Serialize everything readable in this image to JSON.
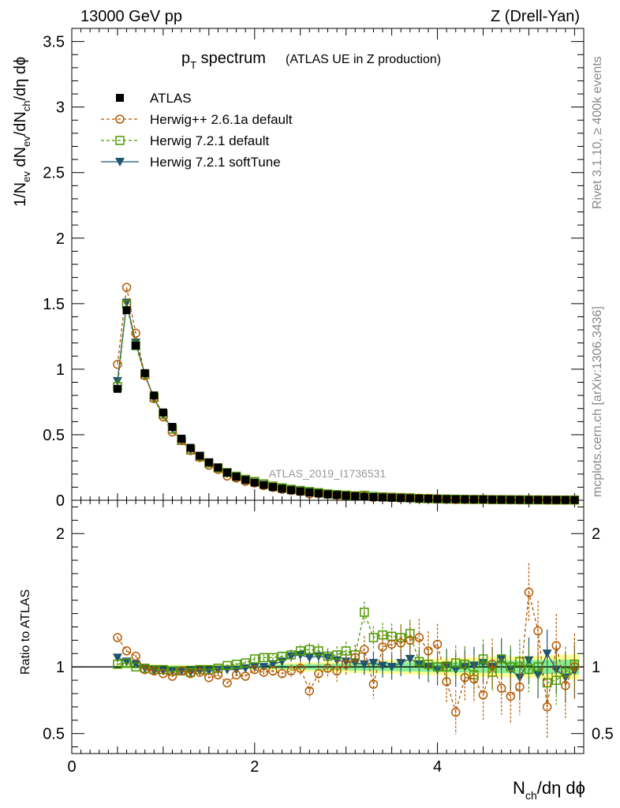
{
  "header": {
    "left": "13000 GeV pp",
    "right": "Z (Drell-Yan)"
  },
  "side_labels": {
    "rivet": "Rivet 3.1.10, ≥ 400k events",
    "mcplots": "mcplots.cern.ch [arXiv:1306.3436]"
  },
  "chart_data": {
    "type": "line",
    "title_main": "p",
    "title_sub": "T",
    "title_rest": " spectrum",
    "title_note": "(ATLAS UE in Z production)",
    "watermark": "ATLAS_2019_I1736531",
    "xlabel": {
      "a": "N",
      "sub": "ch",
      "b": "/dη dϕ"
    },
    "ylabel": {
      "t1": "1/N",
      "s1": "ev",
      "t2": " dN",
      "s2": "ev",
      "t3": "/dN",
      "s3": "ch",
      "t4": "/dη dϕ"
    },
    "ratio_ylabel": "Ratio to ATLAS",
    "xlim": [
      0,
      5.6
    ],
    "ylim": [
      0,
      3.6
    ],
    "ratio_ylim": [
      0.35,
      2.25
    ],
    "x_ticks": [
      0,
      2,
      4
    ],
    "x_tick_labels": [
      "0",
      "2",
      "4"
    ],
    "y_ticks": [
      0,
      0.5,
      1,
      1.5,
      2,
      2.5,
      3,
      3.5
    ],
    "y_tick_labels": [
      "0",
      "0.5",
      "1",
      "1.5",
      "2",
      "2.5",
      "3",
      "3.5"
    ],
    "ratio_ticks": [
      0.5,
      1,
      2
    ],
    "ratio_tick_labels": [
      "0.5",
      "1",
      "2"
    ],
    "x": [
      0.5,
      0.6,
      0.7,
      0.8,
      0.9,
      1.0,
      1.1,
      1.2,
      1.3,
      1.4,
      1.5,
      1.6,
      1.7,
      1.8,
      1.9,
      2.0,
      2.1,
      2.2,
      2.3,
      2.4,
      2.5,
      2.6,
      2.7,
      2.8,
      2.9,
      3.0,
      3.1,
      3.2,
      3.3,
      3.4,
      3.5,
      3.6,
      3.7,
      3.8,
      3.9,
      4.0,
      4.1,
      4.2,
      4.3,
      4.4,
      4.5,
      4.6,
      4.7,
      4.8,
      4.9,
      5.0,
      5.1,
      5.2,
      5.3,
      5.4,
      5.5
    ],
    "series": [
      {
        "name": "ATLAS",
        "color": "#000000",
        "values": [
          0.85,
          1.45,
          1.18,
          0.97,
          0.8,
          0.67,
          0.56,
          0.47,
          0.4,
          0.34,
          0.29,
          0.25,
          0.21,
          0.18,
          0.155,
          0.135,
          0.117,
          0.101,
          0.088,
          0.077,
          0.067,
          0.059,
          0.052,
          0.045,
          0.04,
          0.035,
          0.031,
          0.027,
          0.024,
          0.021,
          0.019,
          0.017,
          0.015,
          0.013,
          0.012,
          0.01,
          0.009,
          0.008,
          0.007,
          0.0065,
          0.006,
          0.005,
          0.0045,
          0.004,
          0.0035,
          0.003,
          0.0028,
          0.0025,
          0.0022,
          0.002,
          0.0018
        ]
      },
      {
        "name": "Herwig++ 2.6.1a default",
        "color": "#b35900",
        "ratio": [
          1.22,
          1.12,
          1.08,
          0.98,
          0.97,
          0.95,
          0.93,
          0.97,
          0.95,
          0.96,
          0.92,
          0.94,
          0.88,
          0.94,
          0.93,
          0.98,
          0.96,
          0.97,
          0.95,
          0.97,
          0.99,
          0.82,
          0.95,
          0.99,
          0.97,
          1.02,
          1.07,
          1.13,
          0.87,
          1.15,
          1.17,
          1.18,
          1.2,
          1.22,
          1.12,
          1.17,
          0.89,
          0.66,
          0.92,
          0.91,
          0.79,
          1.02,
          0.84,
          0.78,
          0.85,
          1.56,
          1.27,
          0.7,
          1.16,
          0.86,
          1.0
        ]
      },
      {
        "name": "Herwig 7.2.1 default",
        "color": "#4d9900",
        "ratio": [
          1.02,
          1.03,
          1.0,
          0.99,
          0.98,
          0.98,
          0.97,
          0.97,
          0.96,
          0.98,
          0.98,
          0.99,
          1.01,
          1.02,
          1.03,
          1.06,
          1.07,
          1.07,
          1.08,
          1.09,
          1.12,
          1.13,
          1.12,
          1.08,
          1.09,
          1.12,
          1.09,
          1.41,
          1.22,
          1.24,
          1.23,
          1.22,
          1.25,
          1.04,
          1.02,
          1.0,
          1.0,
          1.03,
          1.02,
          0.94,
          1.06,
          0.96,
          1.06,
          1.0,
          1.04,
          0.98,
          1.0,
          0.88,
          0.9,
          0.96,
          1.02
        ]
      },
      {
        "name": "Herwig 7.2.1 softTune",
        "color": "#1f5470",
        "ratio": [
          1.07,
          1.04,
          1.02,
          0.99,
          0.97,
          0.97,
          0.97,
          0.97,
          0.96,
          0.97,
          0.97,
          0.98,
          0.98,
          0.98,
          0.99,
          1.0,
          1.0,
          1.02,
          1.04,
          1.08,
          1.09,
          1.07,
          1.08,
          1.07,
          1.05,
          1.04,
          1.03,
          1.02,
          1.03,
          1.01,
          1.0,
          1.03,
          1.06,
          1.02,
          1.0,
          0.98,
          1.01,
          0.98,
          1.0,
          1.01,
          1.03,
          1.0,
          1.06,
          0.98,
          0.92,
          1.05,
          0.94,
          1.1,
          0.98,
          0.92,
          0.97
        ]
      }
    ]
  }
}
